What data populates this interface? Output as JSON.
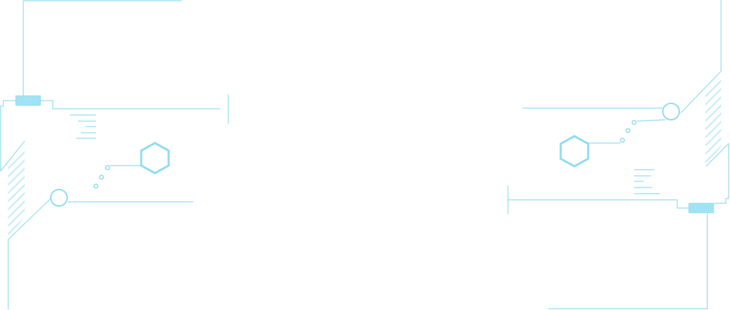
{
  "accent_color": "#8fdcf0",
  "hatch_color": "#c5ecf7",
  "fill_color": "#9fe3f4",
  "frames": [
    {
      "side": "left",
      "icons": [
        "hexagon-icon",
        "circle-node-icon"
      ]
    },
    {
      "side": "right",
      "icons": [
        "hexagon-icon",
        "circle-node-icon"
      ]
    }
  ]
}
